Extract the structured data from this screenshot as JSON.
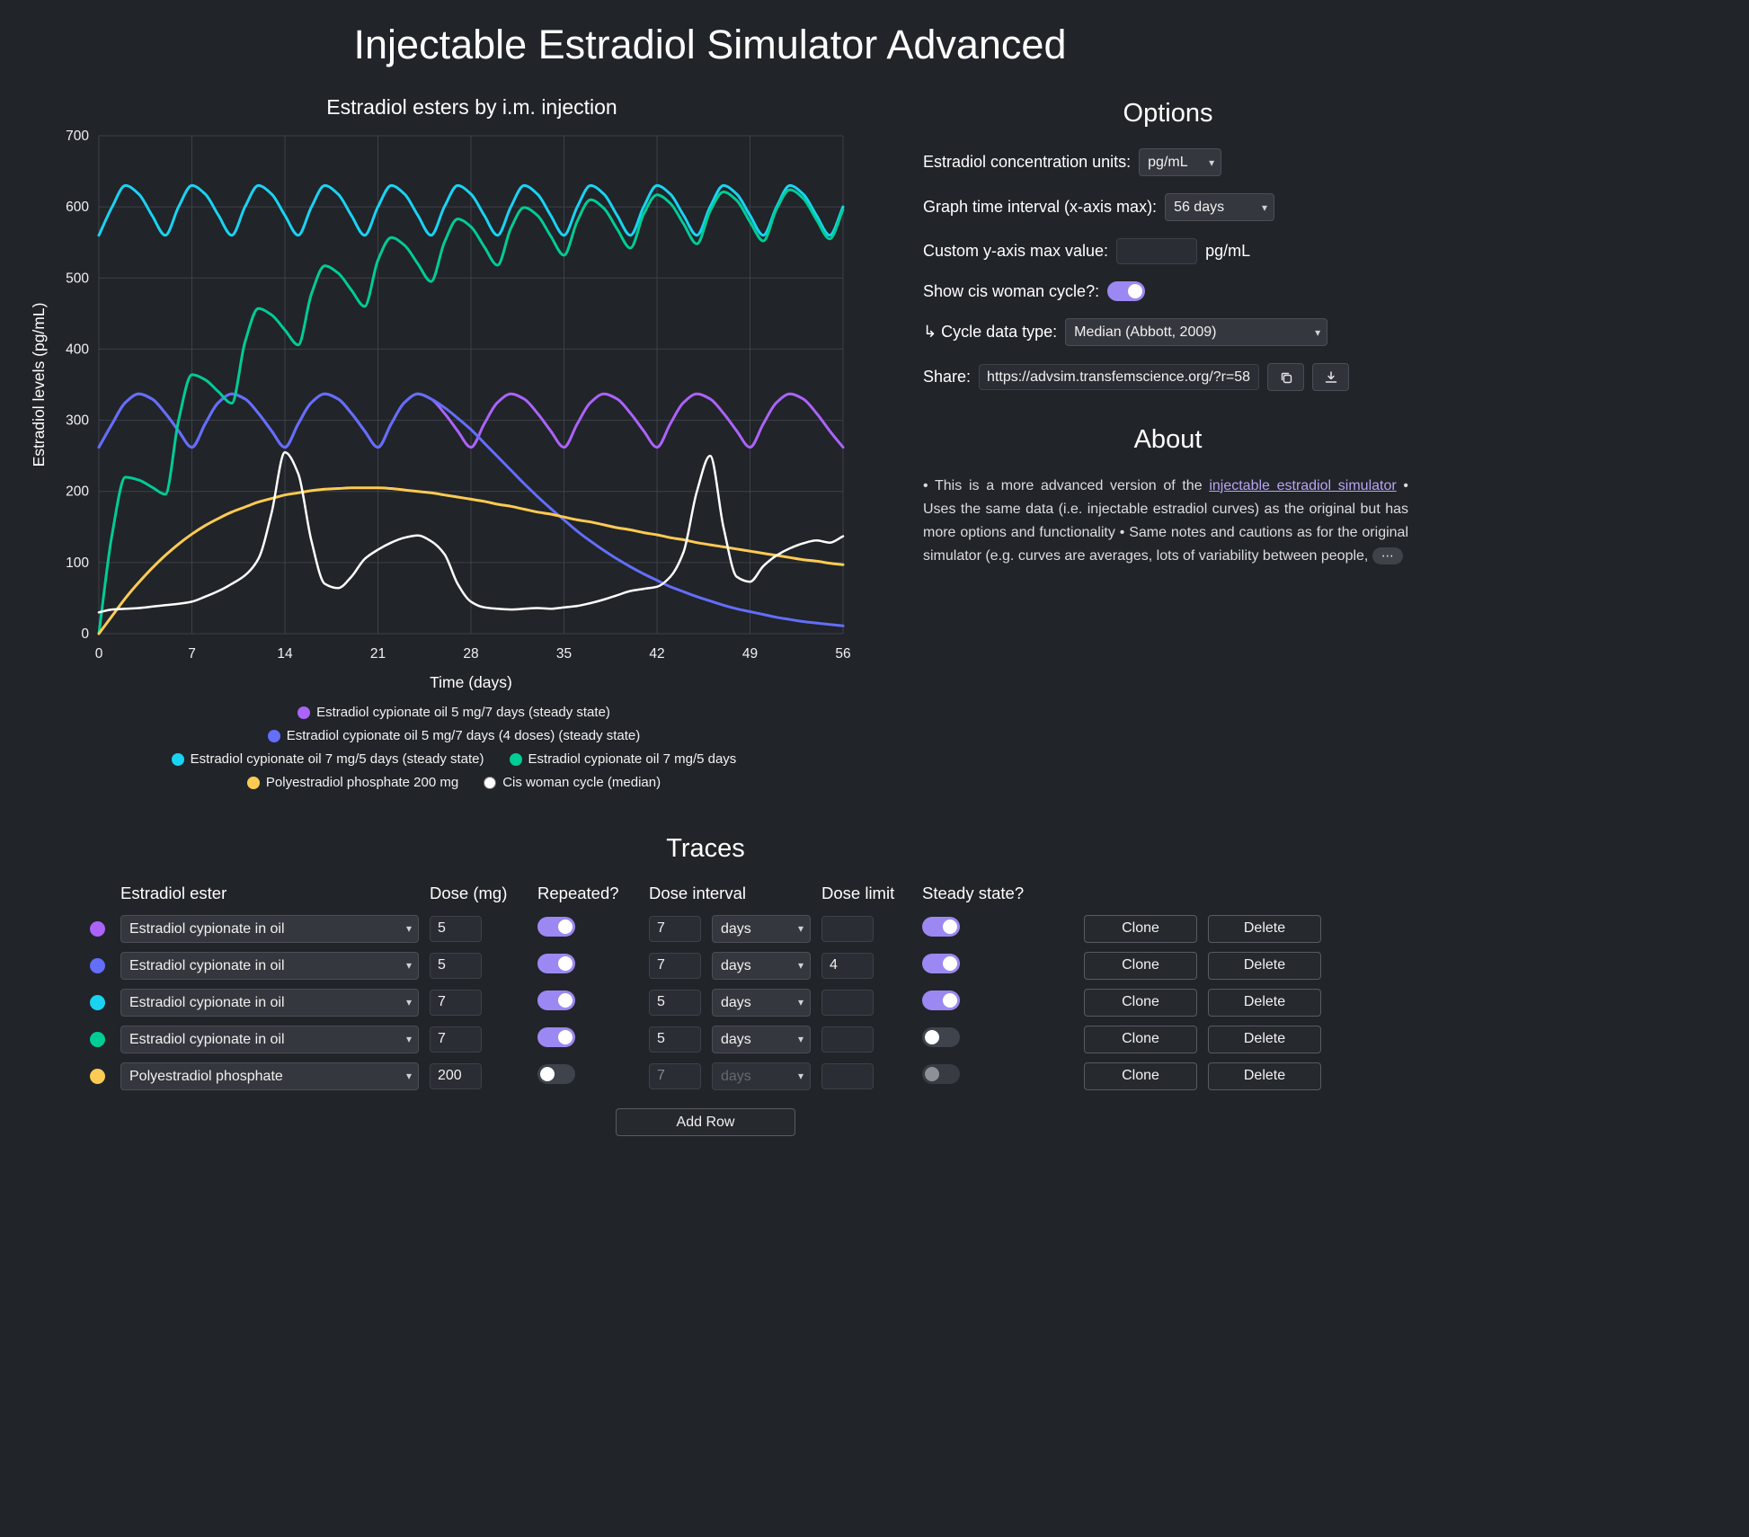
{
  "title": "Injectable Estradiol Simulator Advanced",
  "icons": {
    "chevron_down": "▾",
    "ellipsis": "⋯"
  },
  "options": {
    "heading": "Options",
    "units_label": "Estradiol concentration units:",
    "units_value": "pg/mL",
    "interval_label": "Graph time interval (x-axis max):",
    "interval_value": "56 days",
    "ymax_label": "Custom y-axis max value:",
    "ymax_value": "",
    "ymax_unit": "pg/mL",
    "cycle_toggle_label": "Show cis woman cycle?:",
    "cycle_toggle_on": true,
    "cycle_type_label": "↳ Cycle data type:",
    "cycle_type_value": "Median (Abbott, 2009)",
    "share_label": "Share:",
    "share_url": "https://advsim.transfemscience.org/?r=58"
  },
  "about": {
    "heading": "About",
    "text_pre": "• This is a more advanced version of the ",
    "link_text": "injectable estradiol simulator",
    "text_post": " • Uses the same data (i.e. injectable estradiol curves) as the original but has more options and functionality • Same notes and cautions as for the original simulator (e.g. curves are averages, lots of variability between people, "
  },
  "chart_data": {
    "type": "line",
    "title": "Estradiol esters by i.m. injection",
    "xlabel": "Time (days)",
    "ylabel": "Estradiol levels (pg/mL)",
    "xlim": [
      0,
      56
    ],
    "ylim": [
      0,
      700
    ],
    "xticks": [
      0,
      7,
      14,
      21,
      28,
      35,
      42,
      49,
      56
    ],
    "yticks": [
      0,
      100,
      200,
      300,
      400,
      500,
      600,
      700
    ],
    "x_step": 1,
    "grid": true,
    "legend_position": "bottom",
    "legend_rows": [
      [
        0
      ],
      [
        1
      ],
      [
        2,
        3
      ],
      [
        4,
        5
      ]
    ],
    "series": [
      {
        "name": "Estradiol cypionate oil 5 mg/7 days (steady state)",
        "color": "#AB63FA",
        "values": [
          262,
          295,
          325,
          337,
          330,
          310,
          285,
          262,
          295,
          325,
          337,
          330,
          310,
          285,
          262,
          295,
          325,
          337,
          330,
          310,
          285,
          262,
          295,
          325,
          337,
          330,
          310,
          285,
          262,
          295,
          325,
          337,
          330,
          310,
          285,
          262,
          295,
          325,
          337,
          330,
          310,
          285,
          262,
          295,
          325,
          337,
          330,
          310,
          285,
          262,
          295,
          325,
          337,
          330,
          310,
          285,
          262
        ]
      },
      {
        "name": "Estradiol cypionate oil 5 mg/7 days (4 doses) (steady state)",
        "color": "#636EFA",
        "values": [
          262,
          295,
          325,
          337,
          330,
          310,
          285,
          262,
          295,
          325,
          337,
          330,
          310,
          285,
          262,
          295,
          325,
          337,
          330,
          310,
          285,
          262,
          295,
          325,
          337,
          330,
          318,
          303,
          287,
          268,
          249,
          230,
          211,
          193,
          176,
          160,
          144,
          130,
          117,
          105,
          94,
          84,
          75,
          66,
          59,
          52,
          46,
          40,
          35,
          31,
          27,
          23,
          20,
          17,
          15,
          13,
          11
        ]
      },
      {
        "name": "Estradiol cypionate oil 7 mg/5 days (steady state)",
        "color": "#19D3F3",
        "values": [
          560,
          600,
          630,
          618,
          588,
          560,
          600,
          630,
          618,
          588,
          560,
          600,
          630,
          618,
          588,
          560,
          600,
          630,
          618,
          588,
          560,
          600,
          630,
          618,
          588,
          560,
          600,
          630,
          618,
          588,
          560,
          600,
          630,
          618,
          588,
          560,
          600,
          630,
          618,
          588,
          560,
          600,
          630,
          618,
          588,
          560,
          600,
          630,
          618,
          588,
          560,
          600,
          630,
          618,
          588,
          560,
          600
        ]
      },
      {
        "name": "Estradiol cypionate oil 7 mg/5 days",
        "color": "#00CC96",
        "values": [
          0,
          140,
          220,
          216,
          206,
          196,
          300,
          364,
          357,
          340,
          324,
          410,
          457,
          448,
          427,
          406,
          478,
          517,
          507,
          483,
          460,
          525,
          557,
          546,
          520,
          495,
          550,
          583,
          572,
          544,
          518,
          570,
          599,
          588,
          559,
          532,
          580,
          610,
          598,
          569,
          542,
          590,
          617,
          605,
          576,
          548,
          594,
          621,
          609,
          579,
          552,
          597,
          624,
          612,
          582,
          555,
          596
        ]
      },
      {
        "name": "Polyestradiol phosphate 200 mg",
        "color": "#FECB52",
        "values": [
          0,
          25,
          50,
          72,
          92,
          110,
          126,
          140,
          152,
          162,
          171,
          178,
          185,
          190,
          195,
          198,
          201,
          203,
          204,
          205,
          205,
          205,
          204,
          202,
          200,
          198,
          195,
          192,
          189,
          186,
          182,
          179,
          175,
          171,
          168,
          164,
          160,
          157,
          153,
          149,
          146,
          142,
          139,
          135,
          132,
          128,
          125,
          122,
          119,
          116,
          113,
          110,
          107,
          104,
          102,
          99,
          97
        ]
      },
      {
        "name": "Cis woman cycle (median)",
        "color": "#FFFFFF",
        "width": 2.5,
        "values": [
          30,
          34,
          35,
          36,
          38,
          40,
          42,
          45,
          52,
          60,
          70,
          82,
          105,
          170,
          255,
          225,
          130,
          70,
          64,
          80,
          105,
          118,
          128,
          135,
          138,
          130,
          112,
          70,
          45,
          37,
          35,
          34,
          35,
          36,
          35,
          37,
          39,
          43,
          48,
          54,
          60,
          63,
          66,
          80,
          115,
          200,
          250,
          150,
          80,
          73,
          95,
          110,
          120,
          127,
          131,
          128,
          137
        ]
      }
    ]
  },
  "traces": {
    "heading": "Traces",
    "columns": [
      "Estradiol ester",
      "Dose (mg)",
      "Repeated?",
      "Dose interval",
      "Dose limit",
      "Steady state?"
    ],
    "rows": [
      {
        "color": "#AB63FA",
        "ester": "Estradiol cypionate in oil",
        "dose": "5",
        "repeated": true,
        "interval": "7",
        "unit": "days",
        "limit": "",
        "steady": true
      },
      {
        "color": "#636EFA",
        "ester": "Estradiol cypionate in oil",
        "dose": "5",
        "repeated": true,
        "interval": "7",
        "unit": "days",
        "limit": "4",
        "steady": true
      },
      {
        "color": "#19D3F3",
        "ester": "Estradiol cypionate in oil",
        "dose": "7",
        "repeated": true,
        "interval": "5",
        "unit": "days",
        "limit": "",
        "steady": true
      },
      {
        "color": "#00CC96",
        "ester": "Estradiol cypionate in oil",
        "dose": "7",
        "repeated": true,
        "interval": "5",
        "unit": "days",
        "limit": "",
        "steady": false
      },
      {
        "color": "#FECB52",
        "ester": "Polyestradiol phosphate",
        "dose": "200",
        "repeated": false,
        "interval": "7",
        "unit": "days",
        "limit": "",
        "steady": false
      }
    ],
    "clone_label": "Clone",
    "delete_label": "Delete",
    "add_row_label": "Add Row"
  }
}
